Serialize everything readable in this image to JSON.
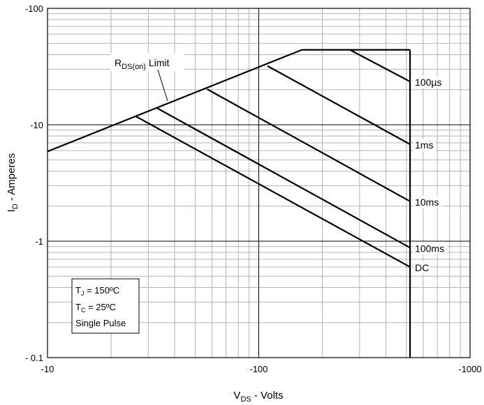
{
  "chart_data": {
    "type": "line",
    "xscale": "log",
    "yscale": "log",
    "xlim": [
      -10,
      -1000
    ],
    "ylim": [
      -0.1,
      -100
    ],
    "grid": true,
    "xlabel": {
      "main": "V",
      "sub": "DS",
      "rest": " - Volts"
    },
    "ylabel": {
      "main": "I",
      "sub": "D",
      "rest": " - Amperes"
    },
    "xticks": [
      {
        "value": -10,
        "label": "-10"
      },
      {
        "value": -100,
        "label": "-100"
      },
      {
        "value": -1000,
        "label": "-1000"
      }
    ],
    "yticks": [
      {
        "value": -0.1,
        "label": "- 0.1"
      },
      {
        "value": -1,
        "label": "-1"
      },
      {
        "value": -10,
        "label": "-10"
      },
      {
        "value": -100,
        "label": "-100"
      }
    ],
    "rdson_limit": {
      "label_main": "R",
      "label_sub": "DS(on)",
      "label_rest": " Limit",
      "x": [
        -10,
        -160
      ],
      "y": [
        -5.9,
        -44
      ]
    },
    "current_limit": {
      "x": [
        -160,
        -520
      ],
      "y": [
        -44,
        -44
      ]
    },
    "voltage_limit": {
      "x": [
        -520,
        -520
      ],
      "y": [
        -44,
        -0.1
      ]
    },
    "series": [
      {
        "name": "100µs",
        "x": [
          -270,
          -520
        ],
        "y": [
          -44,
          -23.5
        ]
      },
      {
        "name": "1ms",
        "x": [
          -110,
          -520
        ],
        "y": [
          -32,
          -6.8
        ]
      },
      {
        "name": "10ms",
        "x": [
          -57,
          -520
        ],
        "y": [
          -20.2,
          -2.2
        ]
      },
      {
        "name": "100ms",
        "x": [
          -33,
          -520
        ],
        "y": [
          -13.9,
          -0.88
        ]
      },
      {
        "name": "DC",
        "x": [
          -26,
          -520
        ],
        "y": [
          -11.9,
          -0.6
        ]
      }
    ],
    "conditions": {
      "tj": {
        "main": "T",
        "sub": "J",
        "rest": " = 150ºC"
      },
      "tc": {
        "main": "T",
        "sub": "C",
        "rest": " = 25ºC"
      },
      "pulse": "Single Pulse"
    }
  }
}
